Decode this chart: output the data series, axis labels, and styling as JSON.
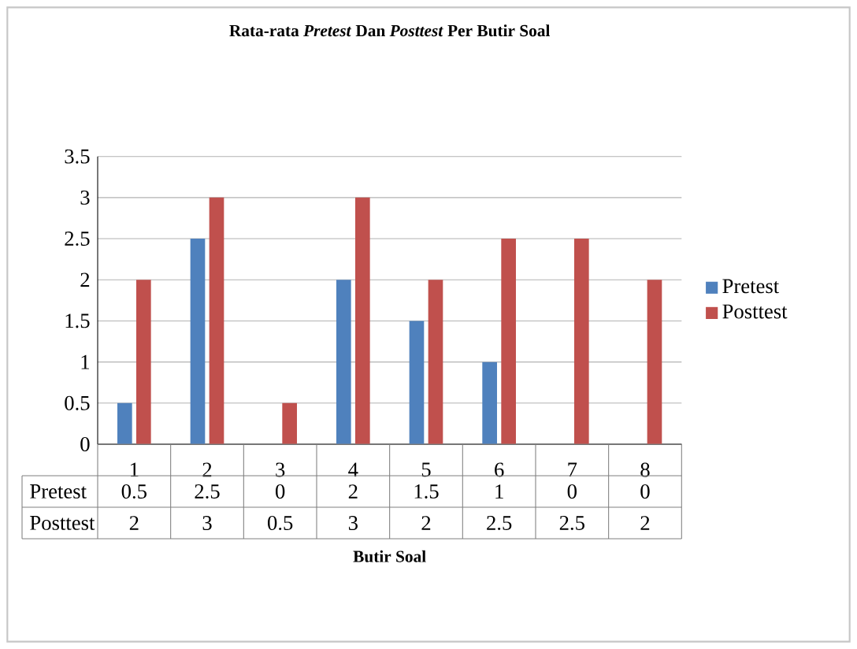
{
  "chart_data": {
    "type": "bar",
    "title": "Rata-rata *Pretest* Dan *Posttest* Per Butir Soal",
    "xlabel": "Butir Soal",
    "categories": [
      "1",
      "2",
      "3",
      "4",
      "5",
      "6",
      "7",
      "8"
    ],
    "series": [
      {
        "name": "Pretest",
        "color": "#4f81bd",
        "values": [
          0.5,
          2.5,
          0,
          2,
          1.5,
          1,
          0,
          0
        ]
      },
      {
        "name": "Posttest",
        "color": "#c0504d",
        "values": [
          2,
          3,
          0.5,
          3,
          2,
          2.5,
          2.5,
          2
        ]
      }
    ],
    "ylim": [
      0,
      3.5
    ],
    "yticks": [
      0,
      0.5,
      1,
      1.5,
      2,
      2.5,
      3,
      3.5
    ],
    "grid": "y",
    "legend": "right",
    "data_labels": true
  }
}
